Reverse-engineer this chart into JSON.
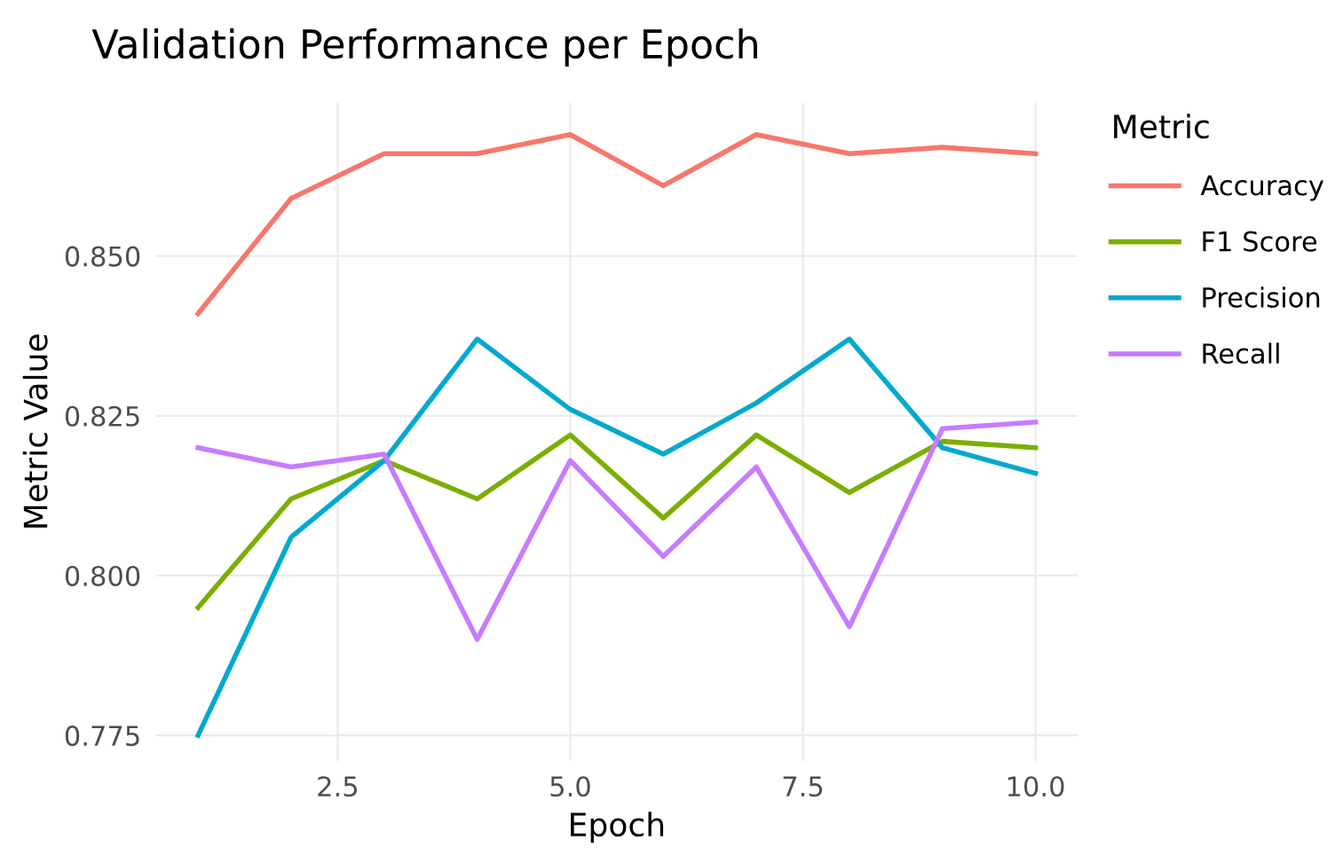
{
  "chart_data": {
    "type": "line",
    "title": "Validation Performance per Epoch",
    "xlabel": "Epoch",
    "ylabel": "Metric Value",
    "legend_title": "Metric",
    "legend": "right",
    "grid": true,
    "line_style": "solid",
    "x": [
      1,
      2,
      3,
      4,
      5,
      6,
      7,
      8,
      9,
      10
    ],
    "xlim": [
      0.55,
      10.45
    ],
    "xticks": [
      2.5,
      {
        "value": 5,
        "label": "5.0"
      },
      7.5,
      {
        "value": 10,
        "label": "10.0"
      }
    ],
    "ylim": [
      0.771,
      0.874
    ],
    "yticks": [
      0.775,
      {
        "value": 0.8,
        "label": "0.800"
      },
      0.825,
      {
        "value": 0.85,
        "label": "0.850"
      }
    ],
    "series": [
      {
        "name": "Accuracy",
        "color": "#f8766d",
        "values": [
          0.841,
          0.859,
          0.866,
          0.866,
          0.869,
          0.861,
          0.869,
          0.866,
          0.867,
          0.866
        ]
      },
      {
        "name": "F1 Score",
        "color": "#7cae00",
        "values": [
          0.795,
          0.812,
          0.818,
          0.812,
          0.822,
          0.809,
          0.822,
          0.813,
          0.821,
          0.82
        ]
      },
      {
        "name": "Precision",
        "color": "#00a9cf",
        "values": [
          0.775,
          0.806,
          0.818,
          0.837,
          0.826,
          0.819,
          0.827,
          0.837,
          0.82,
          0.816
        ]
      },
      {
        "name": "Recall",
        "color": "#c77cff",
        "values": [
          0.82,
          0.817,
          0.819,
          0.79,
          0.818,
          0.803,
          0.817,
          0.792,
          0.823,
          0.824
        ]
      }
    ]
  }
}
